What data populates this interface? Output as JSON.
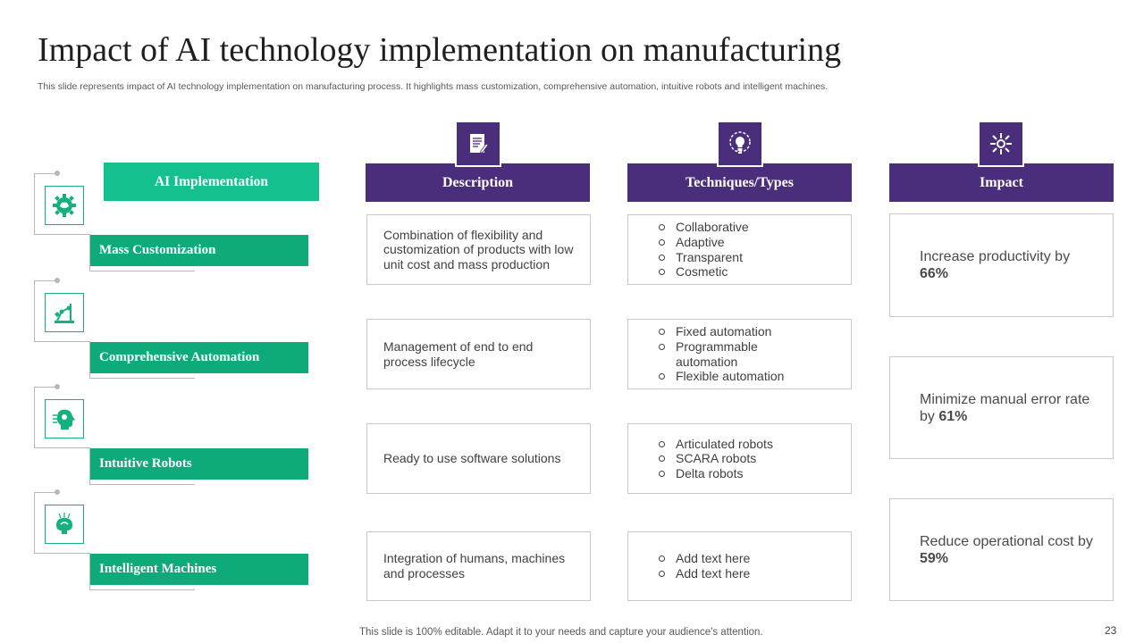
{
  "title": "Impact of AI technology implementation on manufacturing",
  "subtitle": "This slide represents impact of AI  technology implementation on manufacturing process. It highlights mass customization, comprehensive automation, intuitive robots and intelligent machines.",
  "left_header": "AI Implementation",
  "rows": [
    {
      "label": "Mass Customization",
      "icon": "gear-brain-icon",
      "description": "Combination of flexibility and customization of products with low unit cost and mass production",
      "techniques": [
        "Collaborative",
        "Adaptive",
        "Transparent",
        "Cosmetic"
      ]
    },
    {
      "label": "Comprehensive Automation",
      "icon": "robotic-arm-icon",
      "description": "Management of end to end process lifecycle",
      "techniques": [
        "Fixed automation",
        "Programmable automation",
        "Flexible automation"
      ]
    },
    {
      "label": "Intuitive Robots",
      "icon": "ai-head-icon",
      "description": "Ready to use software solutions",
      "techniques": [
        "Articulated robots",
        "SCARA robots",
        "Delta robots"
      ]
    },
    {
      "label": "Intelligent Machines",
      "icon": "brain-circuit-icon",
      "description": "Integration of humans, machines and processes",
      "techniques": [
        "Add text here",
        "Add text here"
      ]
    }
  ],
  "columns": {
    "description": {
      "label": "Description",
      "icon": "document-icon"
    },
    "techniques": {
      "label": "Techniques/Types",
      "icon": "lightbulb-gear-icon"
    },
    "impact": {
      "label": "Impact",
      "icon": "arrows-network-icon"
    }
  },
  "impacts": [
    {
      "text": "Increase productivity by ",
      "value": "66%"
    },
    {
      "text": "Minimize manual error rate by ",
      "value": "61%"
    },
    {
      "text": "Reduce operational cost by ",
      "value": "59%"
    }
  ],
  "colors": {
    "green": "#14c08e",
    "green_dark": "#0faa7a",
    "purple": "#4a2e7c"
  },
  "footer": "This slide is 100% editable. Adapt it to your needs and capture your audience's attention.",
  "page_number": "23"
}
